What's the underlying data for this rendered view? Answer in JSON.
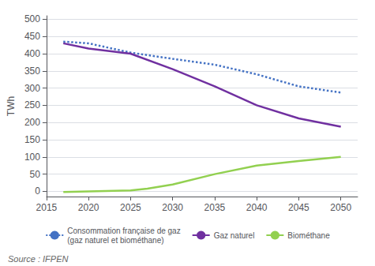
{
  "chart_data": {
    "type": "line",
    "ylabel": "TWh",
    "annotations": [
      "Source : IFPEN"
    ],
    "xlim": [
      2015,
      2052
    ],
    "xticks": [
      2015,
      2020,
      2025,
      2030,
      2035,
      2040,
      2045,
      2050
    ],
    "ylim": [
      -15,
      510
    ],
    "yticks": [
      0,
      50,
      100,
      150,
      200,
      250,
      300,
      350,
      400,
      450,
      500
    ],
    "grid": true,
    "legend": "bottom",
    "series": [
      {
        "name": "Consommation française de gaz\n(gaz naturel et biométhane)",
        "color": "#4472C4",
        "line_style": "dotted",
        "x": [
          2017,
          2020,
          2025,
          2030,
          2035,
          2040,
          2045,
          2050
        ],
        "values": [
          435,
          430,
          403,
          385,
          368,
          340,
          305,
          287
        ]
      },
      {
        "name": "Gaz naturel",
        "color": "#7030A0",
        "line_style": "solid",
        "x": [
          2017,
          2020,
          2025,
          2030,
          2035,
          2040,
          2045,
          2050
        ],
        "values": [
          430,
          415,
          400,
          355,
          305,
          250,
          212,
          188
        ]
      },
      {
        "name": "Biométhane",
        "color": "#92D050",
        "line_style": "solid",
        "x": [
          2017,
          2020,
          2025,
          2027,
          2030,
          2035,
          2040,
          2045,
          2050
        ],
        "values": [
          -2,
          0,
          3,
          8,
          20,
          50,
          75,
          88,
          100
        ]
      }
    ]
  }
}
